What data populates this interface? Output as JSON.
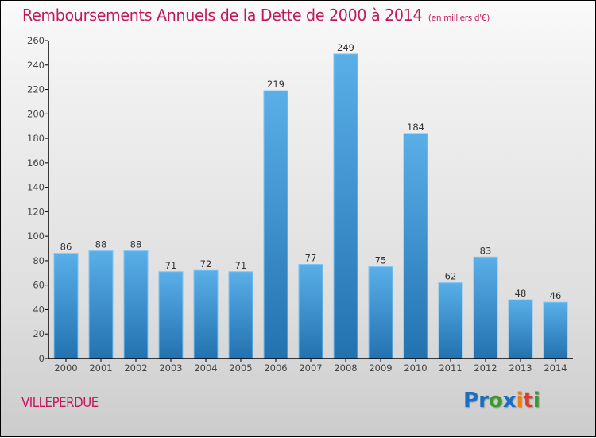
{
  "header": {
    "title": "Remboursements Annuels de la Dette de 2000 à 2014",
    "subtitle": "(en milliers d'€)"
  },
  "footer": {
    "city": "VILLEPERDUE",
    "logo_letters": [
      {
        "char": "P",
        "color": "#1a6fc4"
      },
      {
        "char": "r",
        "color": "#1a6fc4"
      },
      {
        "char": "o",
        "color": "#3a9a2a"
      },
      {
        "char": "x",
        "color": "#1a6fc4"
      },
      {
        "char": "i",
        "color": "#f07d10"
      },
      {
        "char": "t",
        "color": "#e03a2a"
      },
      {
        "char": "i",
        "color": "#3a9a2a"
      }
    ]
  },
  "colors": {
    "title": "#c2185b",
    "bar_top": "#5aafe8",
    "bar_bottom": "#2272b0",
    "bar_edge": "#7cc4f2"
  },
  "chart_data": {
    "type": "bar",
    "title": "Remboursements Annuels de la Dette de 2000 à 2014",
    "subtitle": "(en milliers d'€)",
    "xlabel": "",
    "ylabel": "",
    "categories": [
      "2000",
      "2001",
      "2002",
      "2003",
      "2004",
      "2005",
      "2006",
      "2007",
      "2008",
      "2009",
      "2010",
      "2011",
      "2012",
      "2013",
      "2014"
    ],
    "values": [
      86,
      88,
      88,
      71,
      72,
      71,
      219,
      77,
      249,
      75,
      184,
      62,
      83,
      48,
      46
    ],
    "ylim": [
      0,
      260
    ],
    "yticks": [
      0,
      20,
      40,
      60,
      80,
      100,
      120,
      140,
      160,
      180,
      200,
      220,
      240,
      260
    ],
    "grid": false,
    "data_labels": true
  }
}
